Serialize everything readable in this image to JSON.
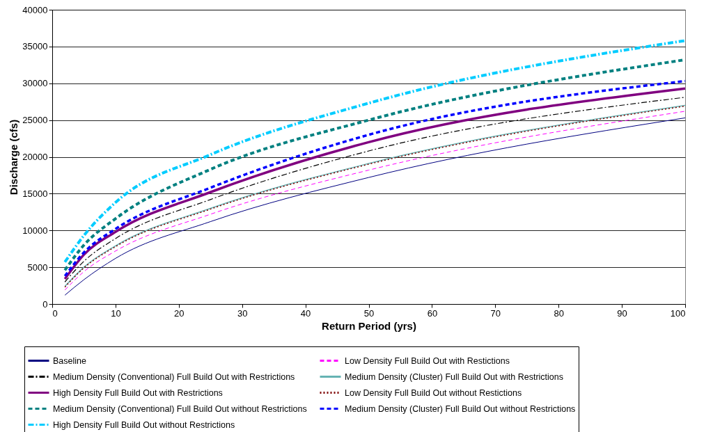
{
  "chart_data": {
    "type": "line",
    "xlabel": "Return Period (yrs)",
    "ylabel": "Discharge (cfs)",
    "x": [
      2,
      5,
      10,
      25,
      50,
      100
    ],
    "xlim": [
      0,
      100
    ],
    "xticks": [
      0,
      10,
      20,
      30,
      40,
      50,
      60,
      70,
      80,
      90,
      100
    ],
    "ylim": [
      0,
      40000
    ],
    "yticks": [
      0,
      5000,
      10000,
      15000,
      20000,
      25000,
      30000,
      35000,
      40000
    ],
    "grid": "y",
    "legend": "bottom",
    "marker": "none",
    "series": [
      {
        "name": "Baseline",
        "color": "#000080",
        "line_style": "solid",
        "values": [
          1200,
          3300,
          6200,
          11200,
          17200,
          25300
        ]
      },
      {
        "name": "Low Density Full Build Out with Restictions",
        "color": "#ff00ff",
        "line_style": "dashed",
        "values": [
          1900,
          4400,
          7200,
          12200,
          18200,
          26200
        ]
      },
      {
        "name": "Medium Density (Conventional) Full Build Out with Restrictions",
        "color": "#000000",
        "line_style": "dashdot",
        "values": [
          3000,
          5800,
          8900,
          14200,
          20800,
          28100
        ]
      },
      {
        "name": "Medium Density (Cluster) Full Build Out with Restrictions",
        "color": "#66b3b3",
        "line_style": "solid",
        "values": [
          2400,
          5000,
          7900,
          13000,
          19100,
          27000
        ]
      },
      {
        "name": "High Density Full Build Out with Restrictions",
        "color": "#800080",
        "line_style": "solid",
        "values": [
          3400,
          6700,
          9800,
          15200,
          22000,
          29300
        ]
      },
      {
        "name": "Low Density Full Build Out without Restictions",
        "color": "#800000",
        "line_style": "dotted",
        "values": [
          2300,
          4900,
          7800,
          12900,
          19000,
          26900
        ]
      },
      {
        "name": "Medium Density (Conventional) Full Build Out without Restrictions",
        "color": "#008080",
        "line_style": "dashed",
        "values": [
          4600,
          8000,
          11600,
          18300,
          25000,
          33200
        ]
      },
      {
        "name": "Medium Density (Cluster) Full Build Out without Restrictions",
        "color": "#0000ff",
        "line_style": "dashed",
        "values": [
          3800,
          7000,
          10200,
          15800,
          23000,
          30300
        ]
      },
      {
        "name": "High Density Full Build Out without Restrictions",
        "color": "#00ccff",
        "line_style": "dashdot",
        "values": [
          5700,
          9300,
          13800,
          20300,
          27300,
          35800
        ]
      }
    ]
  }
}
